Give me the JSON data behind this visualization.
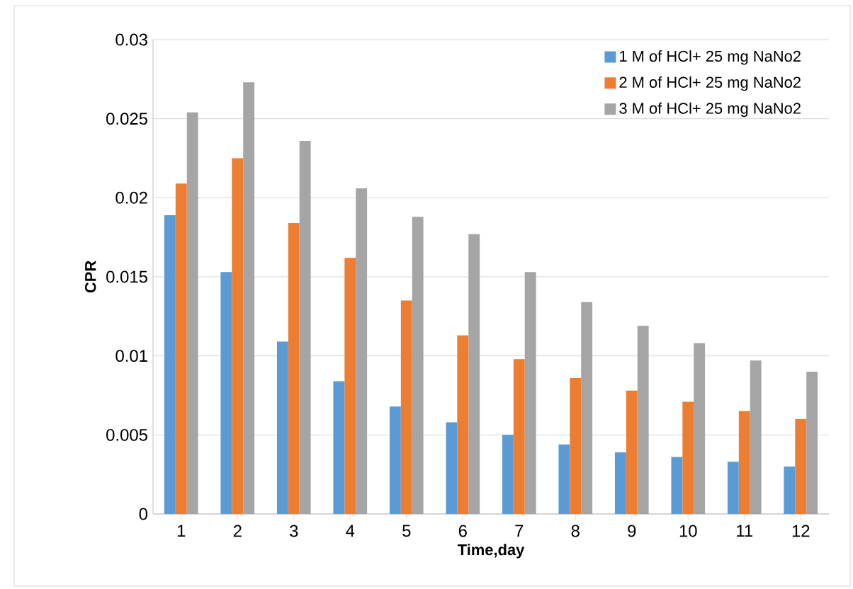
{
  "chart_data": {
    "type": "bar",
    "xlabel": "Time,day",
    "ylabel": "CPR",
    "categories": [
      "1",
      "2",
      "3",
      "4",
      "5",
      "6",
      "7",
      "8",
      "9",
      "10",
      "11",
      "12"
    ],
    "series": [
      {
        "name": "1 M of HCl+ 25 mg NaNo2",
        "color": "#5b9bd5",
        "values": [
          0.0189,
          0.0153,
          0.0109,
          0.0084,
          0.0068,
          0.0058,
          0.005,
          0.0044,
          0.0039,
          0.0036,
          0.0033,
          0.003
        ]
      },
      {
        "name": "2 M of HCl+ 25 mg NaNo2",
        "color": "#ed7d31",
        "values": [
          0.0209,
          0.0225,
          0.0184,
          0.0162,
          0.0135,
          0.0113,
          0.0098,
          0.0086,
          0.0078,
          0.0071,
          0.0065,
          0.006
        ]
      },
      {
        "name": "3 M of HCl+ 25 mg NaNo2",
        "color": "#a5a5a5",
        "values": [
          0.0254,
          0.0273,
          0.0236,
          0.0206,
          0.0188,
          0.0177,
          0.0153,
          0.0134,
          0.0119,
          0.0108,
          0.0097,
          0.009
        ]
      }
    ],
    "ylim": [
      0,
      0.03
    ],
    "yticks": [
      0,
      0.005,
      0.01,
      0.015,
      0.02,
      0.025,
      0.03
    ],
    "grid": "y",
    "legend": "top right"
  }
}
